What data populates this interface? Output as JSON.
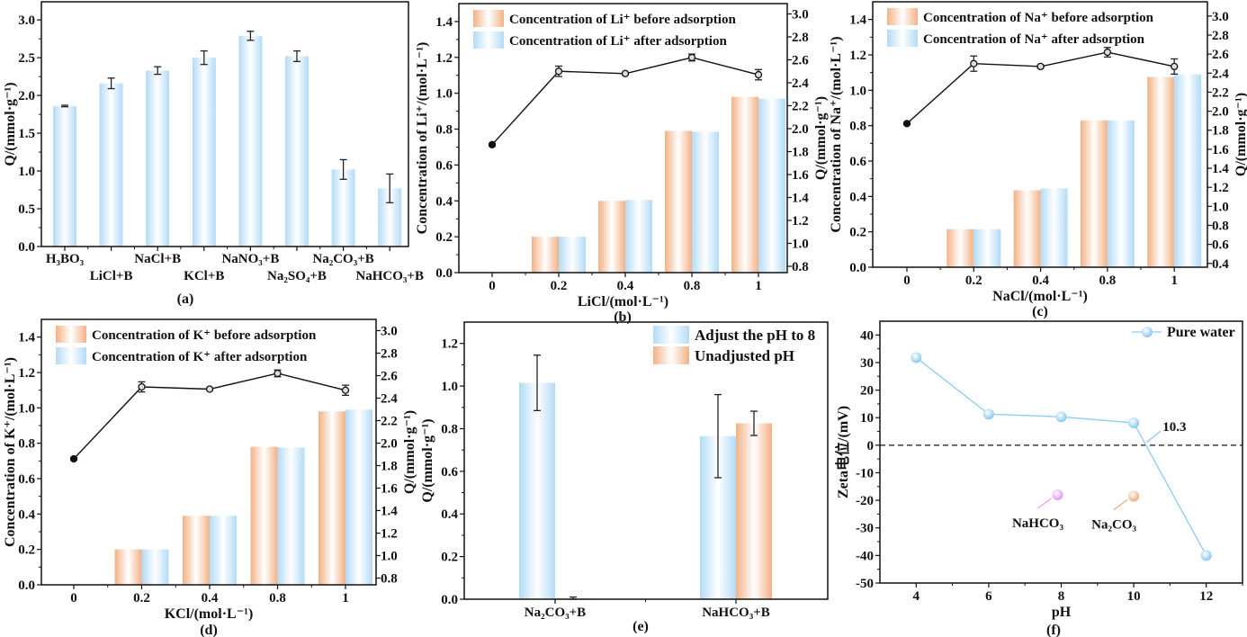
{
  "colors": {
    "blue": "#b3dbf6",
    "orange": "#f3b287",
    "line": "#111111",
    "zeta": "#8ccbf2",
    "nahco3": "#e39cf0",
    "na2co3": "#f2a878"
  },
  "chart_data": [
    {
      "panel": "(a)",
      "type": "bar",
      "categories": [
        "H₃BO₃",
        "LiCl+B",
        "NaCl+B",
        "KCl+B",
        "NaNO₃+B",
        "Na₂SO₄+B",
        "Na₂CO₃+B",
        "NaHCO₃+B"
      ],
      "values": [
        1.86,
        2.16,
        2.33,
        2.5,
        2.79,
        2.52,
        1.02,
        0.77
      ],
      "errors": [
        0.01,
        0.07,
        0.05,
        0.09,
        0.06,
        0.07,
        0.13,
        0.19
      ],
      "xlabel": "",
      "ylabel": "Q/(mmol·g⁻¹)",
      "ylim": [
        0,
        3.24
      ],
      "yticks": [
        "0.0",
        "0.5",
        "1.0",
        "1.5",
        "2.0",
        "2.5",
        "3.0"
      ],
      "grid": false
    },
    {
      "panel": "(b)",
      "type": "bar+line",
      "categories": [
        "0",
        "0.2",
        "0.4",
        "0.8",
        "1"
      ],
      "xlabel": "LiCl/(mol·L⁻¹)",
      "ylabel": "Concentration of Li⁺/(mol·L⁻¹)",
      "y2label": "Q/(mmol·g⁻¹)",
      "ylim": [
        0,
        1.5
      ],
      "yticks": [
        "0.0",
        "0.2",
        "0.4",
        "0.6",
        "0.8",
        "1.0",
        "1.2",
        "1.4"
      ],
      "y2lim": [
        0.745,
        3.09
      ],
      "y2ticks": [
        "0.8",
        "1.0",
        "1.2",
        "1.4",
        "1.6",
        "1.8",
        "2.0",
        "2.2",
        "2.4",
        "2.6",
        "2.8",
        "3.0"
      ],
      "series": [
        {
          "name": "Concentration of Li⁺ before adsorption",
          "color": "orange",
          "values": [
            null,
            0.2,
            0.4,
            0.79,
            0.98
          ]
        },
        {
          "name": "Concentration of Li⁺ after adsorption",
          "color": "blue",
          "values": [
            null,
            0.2,
            0.405,
            0.785,
            0.97
          ]
        }
      ],
      "line": {
        "values": [
          1.86,
          2.5,
          2.48,
          2.62,
          2.47
        ],
        "errors": [
          0.01,
          0.045,
          0.01,
          0.03,
          0.045
        ]
      },
      "legend": "top-left"
    },
    {
      "panel": "(c)",
      "type": "bar+line",
      "categories": [
        "0",
        "0.2",
        "0.4",
        "0.8",
        "1"
      ],
      "xlabel": "NaCl/(mol·L⁻¹)",
      "ylabel": "Concentration of Na⁺/(mol·L⁻¹)",
      "y2label": "Q/(mmol·g⁻¹)",
      "ylim": [
        0,
        1.5
      ],
      "yticks": [
        "0.0",
        "0.2",
        "0.4",
        "0.6",
        "0.8",
        "1.0",
        "1.2",
        "1.4"
      ],
      "y2lim": [
        0.36,
        3.15
      ],
      "y2ticks": [
        "0.4",
        "0.6",
        "0.8",
        "1.0",
        "1.2",
        "1.4",
        "1.6",
        "1.8",
        "2.0",
        "2.2",
        "2.4",
        "2.6",
        "2.8",
        "3.0"
      ],
      "series": [
        {
          "name": "Concentration of Na⁺ before adsorption",
          "color": "orange",
          "values": [
            null,
            0.215,
            0.435,
            0.83,
            1.075
          ]
        },
        {
          "name": "Concentration of Na⁺ after adsorption",
          "color": "blue",
          "values": [
            null,
            0.215,
            0.445,
            0.83,
            1.09
          ]
        }
      ],
      "line": {
        "values": [
          1.87,
          2.5,
          2.47,
          2.62,
          2.47
        ],
        "errors": [
          0.01,
          0.08,
          0.015,
          0.05,
          0.08
        ]
      },
      "legend": "top-left"
    },
    {
      "panel": "(d)",
      "type": "bar+line",
      "categories": [
        "0",
        "0.2",
        "0.4",
        "0.8",
        "1"
      ],
      "xlabel": "KCl/(mol·L⁻¹)",
      "ylabel": "Concentration of K⁺/(mol·L⁻¹)",
      "y2label": "Q/(mmol·g⁻¹)",
      "ylim": [
        0,
        1.5
      ],
      "yticks": [
        "0.0",
        "0.2",
        "0.4",
        "0.6",
        "0.8",
        "1.0",
        "1.2",
        "1.4"
      ],
      "y2lim": [
        0.74,
        3.1
      ],
      "y2ticks": [
        "0.8",
        "1.0",
        "1.2",
        "1.4",
        "1.6",
        "1.8",
        "2.0",
        "2.2",
        "2.4",
        "2.6",
        "2.8",
        "3.0"
      ],
      "series": [
        {
          "name": "Concentration of K⁺ before adsorption",
          "color": "orange",
          "values": [
            null,
            0.2,
            0.39,
            0.78,
            0.98
          ]
        },
        {
          "name": "Concentration of K⁺ after adsorption",
          "color": "blue",
          "values": [
            null,
            0.2,
            0.39,
            0.775,
            0.99
          ]
        }
      ],
      "line": {
        "values": [
          1.86,
          2.5,
          2.48,
          2.62,
          2.47
        ],
        "errors": [
          0.01,
          0.045,
          0.01,
          0.03,
          0.045
        ]
      },
      "legend": "top-left"
    },
    {
      "panel": "(e)",
      "type": "bar",
      "categories": [
        "Na₂CO₃+B",
        "NaHCO₃+B"
      ],
      "xlabel": "",
      "ylabel": "Q/(mmol·g⁻¹)",
      "ylim": [
        0,
        1.3
      ],
      "yticks": [
        "0.0",
        "0.2",
        "0.4",
        "0.6",
        "0.8",
        "1.0",
        "1.2"
      ],
      "series": [
        {
          "name": "Adjust the pH to 8",
          "color": "blue",
          "values": [
            1.015,
            0.765
          ],
          "errors": [
            0.13,
            0.195
          ]
        },
        {
          "name": "Unadjusted pH",
          "color": "orange",
          "values": [
            0.005,
            0.825
          ],
          "errors": [
            0.005,
            0.057
          ]
        }
      ],
      "legend": "top-right"
    },
    {
      "panel": "(f)",
      "type": "line",
      "xlabel": "pH",
      "ylabel": "Zeta电位/(mV)",
      "xlim": [
        3,
        13
      ],
      "xticks": [
        "4",
        "6",
        "8",
        "10",
        "12"
      ],
      "ylim": [
        -50,
        45
      ],
      "yticks": [
        "-50",
        "-40",
        "-30",
        "-20",
        "-10",
        "0",
        "10",
        "20",
        "30",
        "40"
      ],
      "series": [
        {
          "name": "Pure water",
          "x": [
            4,
            6,
            8,
            10,
            12
          ],
          "y": [
            31.8,
            11.3,
            10.3,
            8.1,
            -40
          ]
        }
      ],
      "points": [
        {
          "label": "NaHCO₃",
          "x": 7.9,
          "y": -18,
          "color": "nahco3"
        },
        {
          "label": "Na₂CO₃",
          "x": 10.0,
          "y": -18.5,
          "color": "na2co3"
        }
      ],
      "reference_line": {
        "y": 0,
        "style": "dashed"
      },
      "annotation": {
        "text": "10.3",
        "x": 10.3,
        "y": 0
      },
      "legend": "top-right"
    }
  ]
}
